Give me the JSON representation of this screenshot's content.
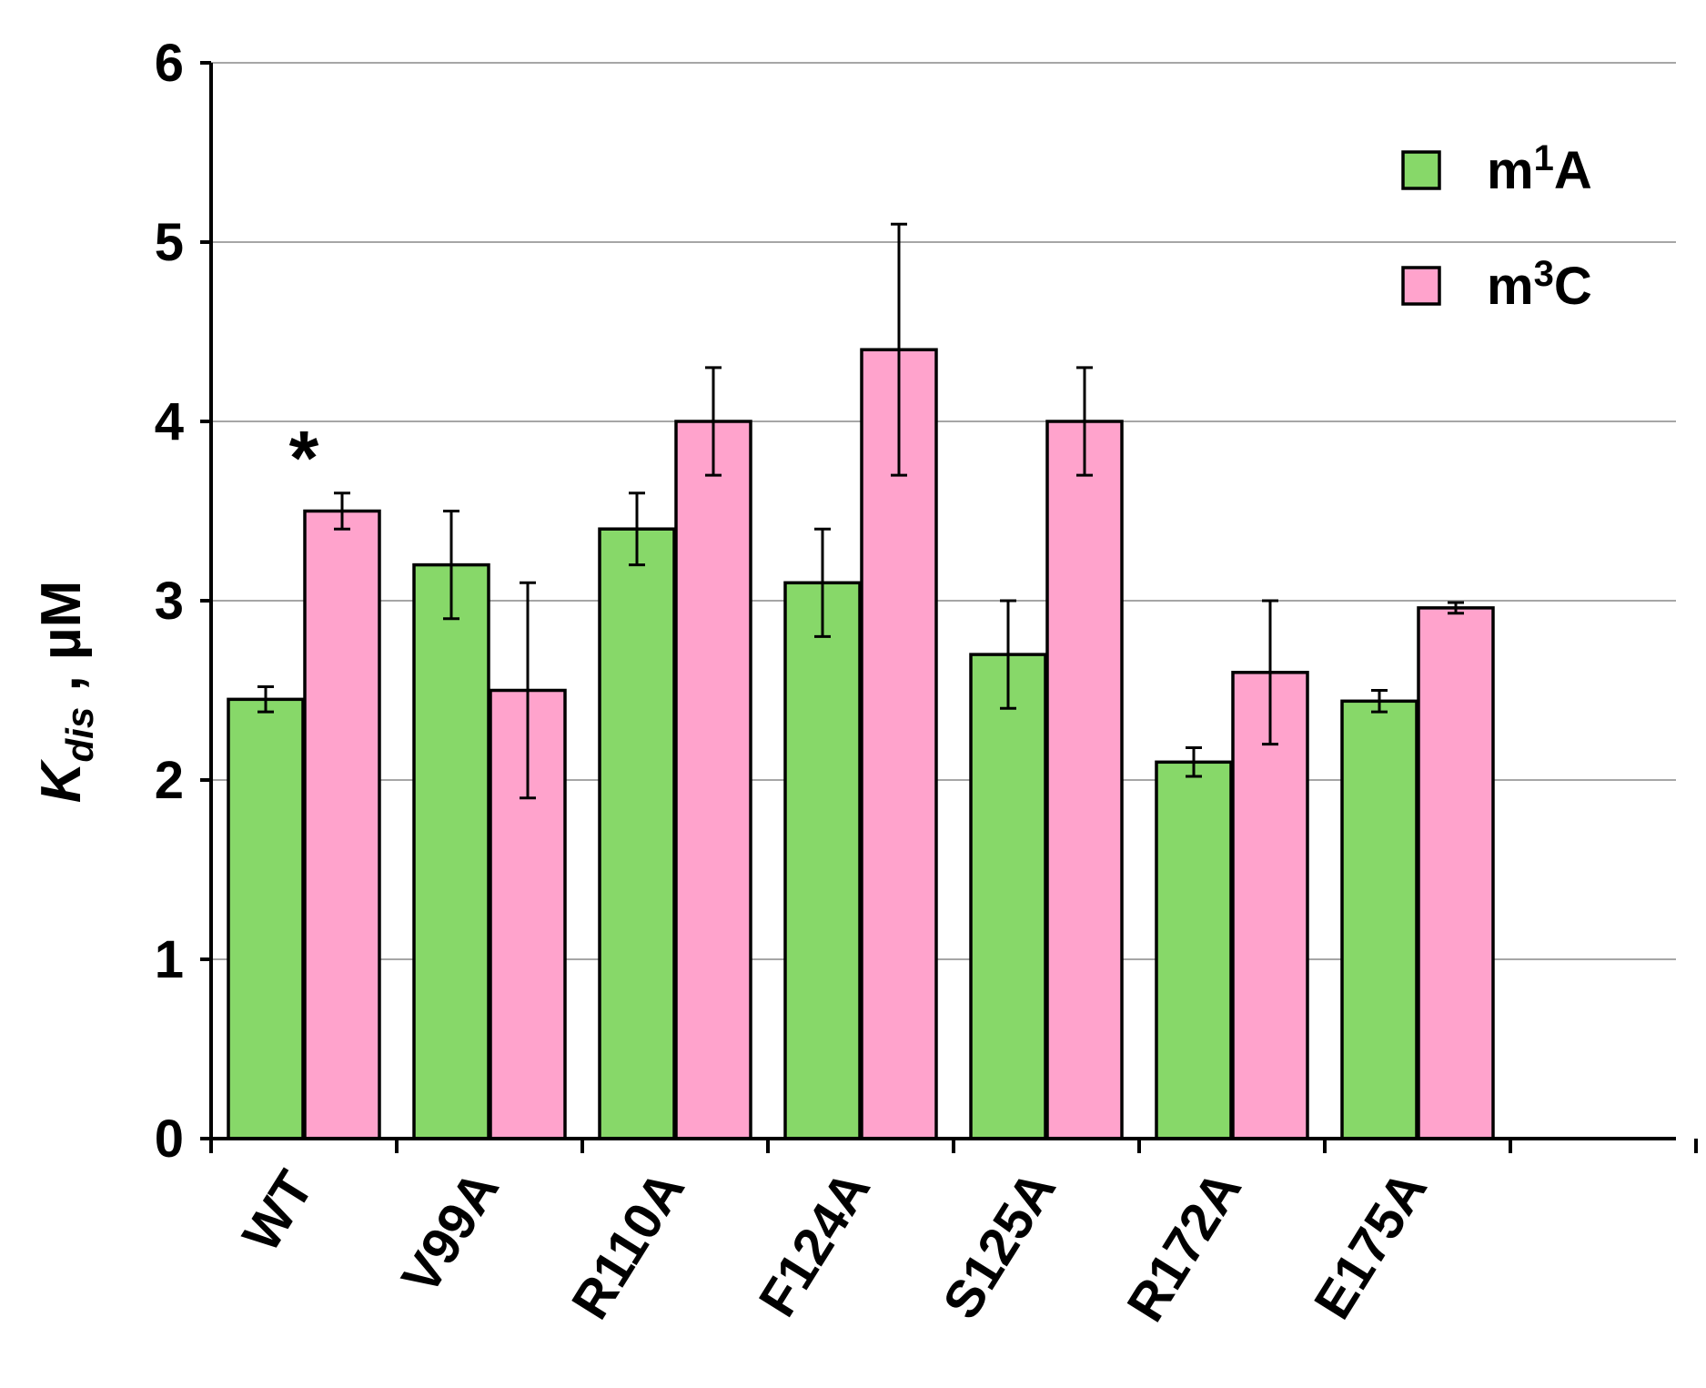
{
  "chart_data": {
    "type": "bar",
    "categories": [
      "WT",
      "V99A",
      "R110A",
      "F124A",
      "S125A",
      "R172A",
      "E175A"
    ],
    "category_slots": 8,
    "series": [
      {
        "name": "m1A",
        "color": "#87d869",
        "values": [
          2.45,
          3.2,
          3.4,
          3.1,
          2.7,
          2.1,
          2.44
        ],
        "errors": [
          0.07,
          0.3,
          0.2,
          0.3,
          0.3,
          0.08,
          0.06
        ]
      },
      {
        "name": "m3C",
        "color": "#ffa3cc",
        "values": [
          3.5,
          2.5,
          4.0,
          4.4,
          4.0,
          2.6,
          2.96
        ],
        "errors": [
          0.1,
          0.6,
          0.3,
          0.7,
          0.3,
          0.4,
          0.03
        ]
      }
    ],
    "legend": {
      "position": "top-right",
      "entries": [
        {
          "base": "m",
          "sup": "1",
          "rest": "A"
        },
        {
          "base": "m",
          "sup": "3",
          "rest": "C"
        }
      ]
    },
    "ylabel": {
      "base": "K",
      "sub": "dis",
      "rest": " , µM"
    },
    "ylim": [
      0,
      6
    ],
    "yticks": [
      0,
      1,
      2,
      3,
      4,
      5,
      6
    ],
    "grid": true,
    "annotations": [
      {
        "text": "*",
        "category": "WT"
      }
    ]
  }
}
